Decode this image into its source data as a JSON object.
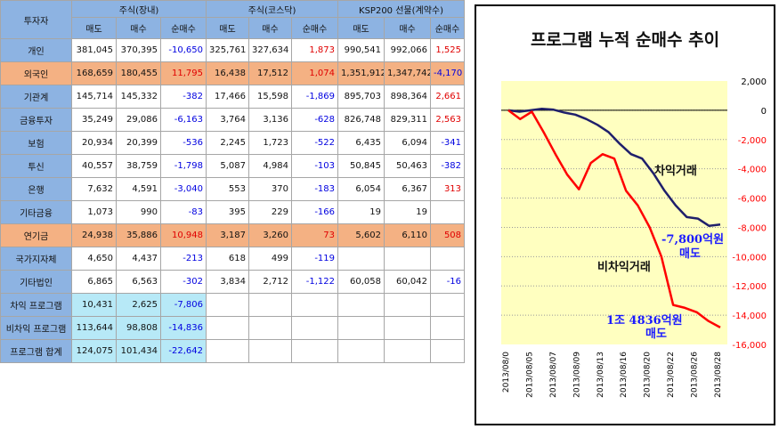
{
  "table": {
    "corner": "투자자",
    "groups": [
      "주식(장내)",
      "주식(코스닥)",
      "KSP200 선물(계약수)"
    ],
    "subheaders": [
      "매도",
      "매수",
      "순매수",
      "매도",
      "매수",
      "순매수",
      "매도",
      "매수",
      "순매수"
    ],
    "rows": [
      {
        "name": "개인",
        "style": "",
        "cells": [
          "381,045",
          "370,395",
          "-10,650",
          "325,761",
          "327,634",
          "1,873",
          "990,541",
          "992,066",
          "1,525"
        ]
      },
      {
        "name": "외국인",
        "style": "hl",
        "cells": [
          "168,659",
          "180,455",
          "11,795",
          "16,438",
          "17,512",
          "1,074",
          "1,351,912",
          "1,347,742",
          "-4,170"
        ]
      },
      {
        "name": "기관계",
        "style": "",
        "cells": [
          "145,714",
          "145,332",
          "-382",
          "17,466",
          "15,598",
          "-1,869",
          "895,703",
          "898,364",
          "2,661"
        ]
      },
      {
        "name": "금융투자",
        "style": "",
        "cells": [
          "35,249",
          "29,086",
          "-6,163",
          "3,764",
          "3,136",
          "-628",
          "826,748",
          "829,311",
          "2,563"
        ]
      },
      {
        "name": "보험",
        "style": "",
        "cells": [
          "20,934",
          "20,399",
          "-536",
          "2,245",
          "1,723",
          "-522",
          "6,435",
          "6,094",
          "-341"
        ]
      },
      {
        "name": "투신",
        "style": "",
        "cells": [
          "40,557",
          "38,759",
          "-1,798",
          "5,087",
          "4,984",
          "-103",
          "50,845",
          "50,463",
          "-382"
        ]
      },
      {
        "name": "은행",
        "style": "",
        "cells": [
          "7,632",
          "4,591",
          "-3,040",
          "553",
          "370",
          "-183",
          "6,054",
          "6,367",
          "313"
        ]
      },
      {
        "name": "기타금융",
        "style": "",
        "cells": [
          "1,073",
          "990",
          "-83",
          "395",
          "229",
          "-166",
          "19",
          "19",
          ""
        ]
      },
      {
        "name": "연기금",
        "style": "hl",
        "cells": [
          "24,938",
          "35,886",
          "10,948",
          "3,187",
          "3,260",
          "73",
          "5,602",
          "6,110",
          "508"
        ]
      },
      {
        "name": "국가지자체",
        "style": "",
        "cells": [
          "4,650",
          "4,437",
          "-213",
          "618",
          "499",
          "-119",
          "",
          "",
          ""
        ]
      },
      {
        "name": "기타법인",
        "style": "",
        "cells": [
          "6,865",
          "6,563",
          "-302",
          "3,834",
          "2,712",
          "-1,122",
          "60,058",
          "60,042",
          "-16"
        ]
      },
      {
        "name": "차익 프로그램",
        "style": "pg",
        "cells": [
          "10,431",
          "2,625",
          "-7,806",
          "",
          "",
          "",
          "",
          "",
          ""
        ]
      },
      {
        "name": "비차익 프로그램",
        "style": "pg",
        "cells": [
          "113,644",
          "98,808",
          "-14,836",
          "",
          "",
          "",
          "",
          "",
          ""
        ]
      },
      {
        "name": "프로그램 합계",
        "style": "pg",
        "cells": [
          "124,075",
          "101,434",
          "-22,642",
          "",
          "",
          "",
          "",
          "",
          ""
        ]
      }
    ]
  },
  "chart_data": {
    "type": "line",
    "title": "프로그램 누적 순매수 추이",
    "x_tick_labels": [
      "2013/08/0",
      "2013/08/05",
      "2013/08/07",
      "2013/08/09",
      "2013/08/13",
      "2013/08/16",
      "2013/08/20",
      "2013/08/22",
      "2013/08/26",
      "2013/08/28"
    ],
    "y_tick_labels": [
      "2,000",
      "0",
      "-2,000",
      "-4,000",
      "-6,000",
      "-8,000",
      "-10,000",
      "-12,000",
      "-14,000",
      "-16,000"
    ],
    "ylim": [
      -16000,
      2000
    ],
    "y_axis_position": "right",
    "grid": "horizontal dotted",
    "series": [
      {
        "name": "차익거래",
        "color": "#1f1f6b",
        "values": [
          0,
          -100,
          0,
          100,
          50,
          -150,
          -300,
          -600,
          -1000,
          -1500,
          -2300,
          -3000,
          -3300,
          -4300,
          -5500,
          -6500,
          -7300,
          -7400,
          -7900,
          -7800
        ]
      },
      {
        "name": "비차익거래",
        "color": "#ff0000",
        "values": [
          0,
          -600,
          -100,
          -1500,
          -3000,
          -4400,
          -5400,
          -3600,
          -3000,
          -3300,
          -5500,
          -6500,
          -8000,
          -10000,
          -13300,
          -13500,
          -13800,
          -14400,
          -14836
        ]
      }
    ],
    "annotations": [
      {
        "text": "-7,800억원",
        "color": "#1a1aff"
      },
      {
        "text": "매도",
        "color": "#1a1aff"
      },
      {
        "text": "1조 4836억원",
        "color": "#1a1aff"
      },
      {
        "text": "매도",
        "color": "#1a1aff"
      }
    ]
  }
}
